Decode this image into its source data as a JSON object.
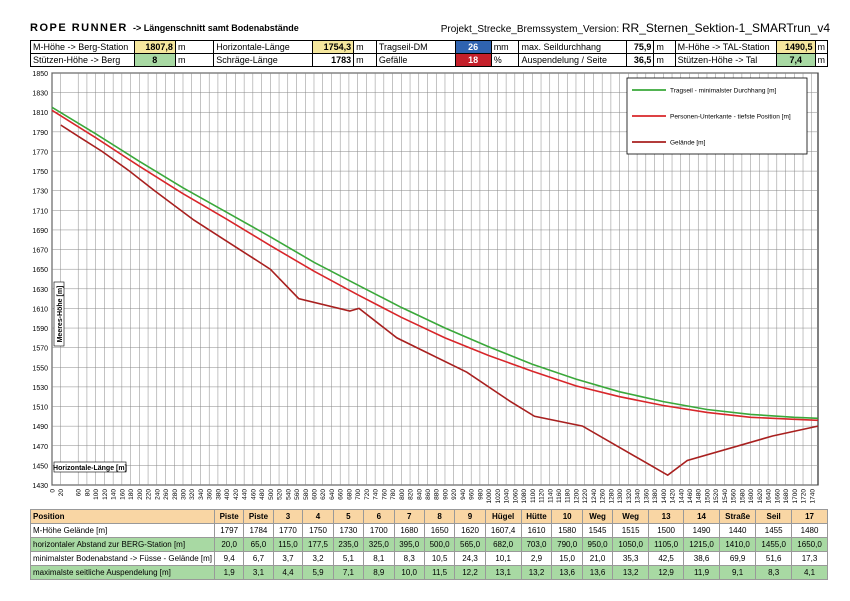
{
  "header": {
    "brand": "ROPE RUNNER",
    "subtitle": "-> Längenschnitt samt Bodenabstände",
    "project_label": "Projekt_Strecke_Bremssystem_Version:",
    "project_version": "RR_Sternen_Sektion-1_SMARTrun_v4"
  },
  "info": {
    "mhoehe_berg_label": "M-Höhe -> Berg-Station",
    "mhoehe_berg_value": "1807,8",
    "stuetzen_berg_label": "Stützen-Höhe -> Berg",
    "stuetzen_berg_value": "8",
    "horiz_label": "Horizontale-Länge",
    "horiz_value": "1754,3",
    "schraeg_label": "Schräge-Länge",
    "schraeg_value": "1783",
    "tragseil_label": "Tragseil-DM",
    "tragseil_value": "26",
    "tragseil_unit": "mm",
    "gefaelle_label": "Gefälle",
    "gefaelle_value": "18",
    "gefaelle_unit": "%",
    "durchhang_label": "max. Seildurchhang",
    "durchhang_value": "75,9",
    "auspendelung_label": "Auspendelung / Seite",
    "auspendelung_value": "36,5",
    "mhoehe_tal_label": "M-Höhe -> TAL-Station",
    "mhoehe_tal_value": "1490,5",
    "stuetzen_tal_label": "Stützen-Höhe -> Tal",
    "stuetzen_tal_value": "7,4",
    "unit_m": "m"
  },
  "chart_data": {
    "type": "line",
    "ylabel": "Meeres-Höhe [m]",
    "xlabel": "Horizontale-Länge [m]",
    "ylim": [
      1430,
      1850
    ],
    "yticks": [
      1430,
      1450,
      1470,
      1490,
      1510,
      1530,
      1550,
      1570,
      1590,
      1610,
      1630,
      1650,
      1670,
      1690,
      1710,
      1730,
      1750,
      1770,
      1790,
      1810,
      1830,
      1850
    ],
    "xlim": [
      0,
      1754.3
    ],
    "xticks": [
      0,
      20,
      60,
      80,
      100,
      120,
      140,
      160,
      180,
      200,
      220,
      240,
      260,
      280,
      300,
      320,
      340,
      360,
      380,
      400,
      420,
      440,
      460,
      480,
      500,
      520,
      540,
      560,
      580,
      600,
      620,
      640,
      660,
      680,
      700,
      720,
      740,
      760,
      780,
      800,
      820,
      840,
      860,
      880,
      900,
      920,
      940,
      960,
      980,
      1000,
      1020,
      1040,
      1060,
      1080,
      1100,
      1120,
      1140,
      1160,
      1180,
      1200,
      1220,
      1240,
      1260,
      1280,
      1300,
      1320,
      1340,
      1360,
      1380,
      1400,
      1420,
      1440,
      1460,
      1480,
      1500,
      1520,
      1540,
      1560,
      1580,
      1600,
      1620,
      1640,
      1660,
      1680,
      1700,
      1720,
      1740
    ],
    "grid": true,
    "legend_position": "top-right",
    "series": [
      {
        "name": "Tragseil - minimalster Durchhang [m]",
        "color": "#3aa83a",
        "x": [
          0,
          100,
          200,
          300,
          400,
          500,
          600,
          700,
          800,
          900,
          1000,
          1100,
          1200,
          1300,
          1400,
          1500,
          1600,
          1700,
          1754
        ],
        "y": [
          1815,
          1788,
          1760,
          1733,
          1708,
          1683,
          1657,
          1634,
          1611,
          1590,
          1571,
          1553,
          1538,
          1525,
          1515,
          1507,
          1502,
          1499,
          1498
        ]
      },
      {
        "name": "Personen-Unterkante - tiefste Position [m]",
        "color": "#d8262a",
        "x": [
          0,
          100,
          200,
          300,
          400,
          500,
          600,
          700,
          800,
          900,
          1000,
          1100,
          1200,
          1300,
          1400,
          1500,
          1600,
          1700,
          1754
        ],
        "y": [
          1812,
          1784,
          1755,
          1727,
          1701,
          1674,
          1648,
          1624,
          1601,
          1580,
          1562,
          1546,
          1531,
          1520,
          1511,
          1504,
          1499,
          1497,
          1496
        ]
      },
      {
        "name": "Gelände [m]",
        "color": "#a8201f",
        "x": [
          20,
          65,
          115,
          177.5,
          235,
          325,
          395,
          500,
          565,
          682,
          703,
          790,
          950,
          1050,
          1105,
          1215,
          1410,
          1455,
          1650,
          1754
        ],
        "y": [
          1797,
          1784,
          1770,
          1750,
          1730,
          1700,
          1680,
          1650,
          1620,
          1607.4,
          1610,
          1580,
          1545,
          1515,
          1500,
          1490,
          1440,
          1455,
          1480,
          1490
        ]
      }
    ]
  },
  "table": {
    "rows": [
      {
        "label": "Position",
        "style": "hd",
        "values": [
          "Piste",
          "Piste",
          "3",
          "4",
          "5",
          "6",
          "7",
          "8",
          "9",
          "Hügel",
          "Hütte",
          "10",
          "Weg",
          "Weg",
          "13",
          "14",
          "Straße",
          "Seil",
          "17"
        ]
      },
      {
        "label": "M-Höhe Gelände  [m]",
        "style": "w",
        "values": [
          "1797",
          "1784",
          "1770",
          "1750",
          "1730",
          "1700",
          "1680",
          "1650",
          "1620",
          "1607,4",
          "1610",
          "1580",
          "1545",
          "1515",
          "1500",
          "1490",
          "1440",
          "1455",
          "1480"
        ]
      },
      {
        "label": "horizontaler Abstand zur BERG-Station [m]",
        "style": "gr",
        "values": [
          "20,0",
          "65,0",
          "115,0",
          "177,5",
          "235,0",
          "325,0",
          "395,0",
          "500,0",
          "565,0",
          "682,0",
          "703,0",
          "790,0",
          "950,0",
          "1050,0",
          "1105,0",
          "1215,0",
          "1410,0",
          "1455,0",
          "1650,0"
        ]
      },
      {
        "label": "minimalster Bodenabstand -> Füsse - Gelände [m]",
        "style": "w",
        "values": [
          "9,4",
          "6,7",
          "3,7",
          "3,2",
          "5,1",
          "8,1",
          "8,3",
          "10,5",
          "24,3",
          "10,1",
          "2,9",
          "15,0",
          "21,0",
          "35,3",
          "42,5",
          "38,6",
          "69,9",
          "51,6",
          "17,3"
        ]
      },
      {
        "label": "maximalste seitliche Auspendelung  [m]",
        "style": "gr",
        "values": [
          "1,9",
          "3,1",
          "4,4",
          "5,9",
          "7,1",
          "8,9",
          "10,0",
          "11,5",
          "12,2",
          "13,1",
          "13,2",
          "13,6",
          "13,6",
          "13,2",
          "12,9",
          "11,9",
          "9,1",
          "8,3",
          "4,1"
        ]
      }
    ]
  }
}
